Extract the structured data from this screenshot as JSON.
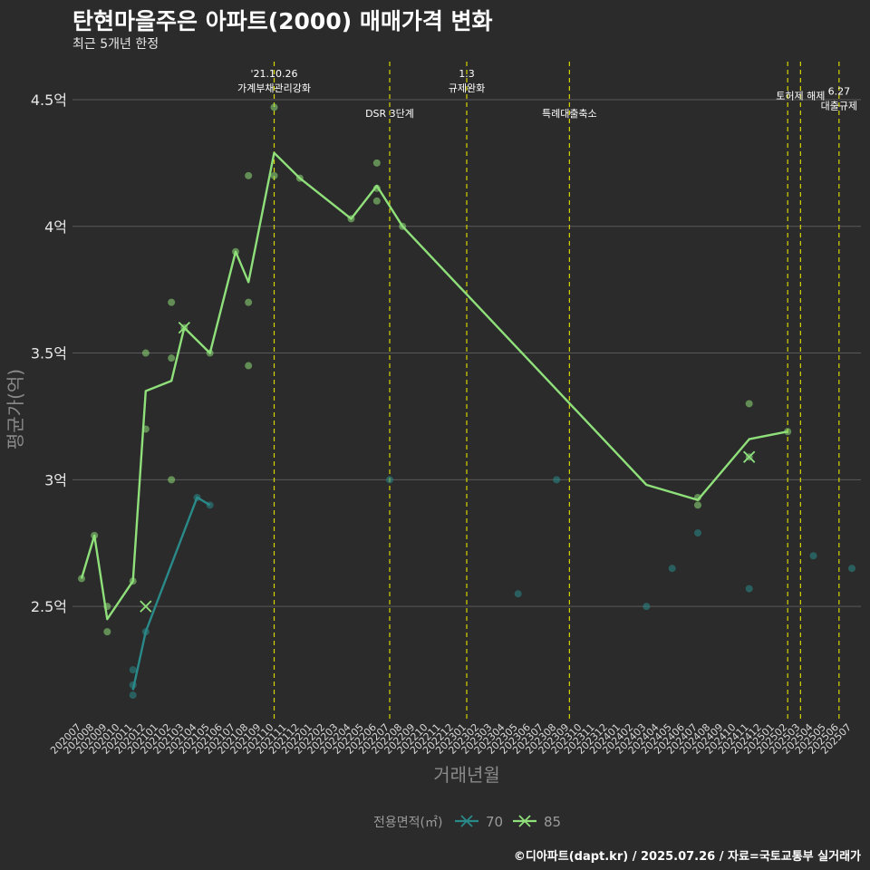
{
  "title": "탄현마을주은 아파트(2000) 매매가격 변화",
  "subtitle": "최근 5개년 한정",
  "caption": "©디아파트(dapt.kr) / 2025.07.26 / 자료=국토교통부 실거래가",
  "colors": {
    "background": "#2b2b2b",
    "grid": "#5a5a5a",
    "area70": "#2a8a8a",
    "area85": "#8fe07a",
    "event_line": "#d8d400"
  },
  "chart_data": {
    "type": "line",
    "xlabel": "거래년월",
    "ylabel": "평균가(억)",
    "ylim": [
      2.05,
      4.65
    ],
    "y_ticks": [
      {
        "value": 2.5,
        "label": "2.5억"
      },
      {
        "value": 3.0,
        "label": "3억"
      },
      {
        "value": 3.5,
        "label": "3.5억"
      },
      {
        "value": 4.0,
        "label": "4억"
      },
      {
        "value": 4.5,
        "label": "4.5억"
      }
    ],
    "x_categories": [
      "202007",
      "202008",
      "202009",
      "202010",
      "202011",
      "202012",
      "202101",
      "202102",
      "202103",
      "202104",
      "202105",
      "202106",
      "202107",
      "202108",
      "202109",
      "202110",
      "202111",
      "202112",
      "202201",
      "202202",
      "202203",
      "202204",
      "202205",
      "202206",
      "202207",
      "202208",
      "202209",
      "202210",
      "202211",
      "202212",
      "202301",
      "202302",
      "202303",
      "202304",
      "202305",
      "202306",
      "202307",
      "202308",
      "202309",
      "202310",
      "202311",
      "202312",
      "202401",
      "202402",
      "202403",
      "202404",
      "202405",
      "202406",
      "202407",
      "202408",
      "202409",
      "202410",
      "202411",
      "202412",
      "202501",
      "202502",
      "202503",
      "202504",
      "202505",
      "202506",
      "202507"
    ],
    "legend": {
      "title": "전용면적(㎡)",
      "position": "bottom",
      "items": [
        "70",
        "85"
      ]
    },
    "series": [
      {
        "name": "85",
        "color": "#8fe07a",
        "line": [
          [
            "202007",
            2.61
          ],
          [
            "202008",
            2.78
          ],
          [
            "202009",
            2.45
          ],
          [
            "202011",
            2.6
          ],
          [
            "202012",
            3.35
          ],
          [
            "202102",
            3.39
          ],
          [
            "202103",
            3.6
          ],
          [
            "202105",
            3.5
          ],
          [
            "202107",
            3.9
          ],
          [
            "202108",
            3.78
          ],
          [
            "202110",
            4.29
          ],
          [
            "202112",
            4.19
          ],
          [
            "202204",
            4.03
          ],
          [
            "202206",
            4.16
          ],
          [
            "202208",
            4.0
          ],
          [
            "202403",
            2.98
          ],
          [
            "202407",
            2.92
          ],
          [
            "202411",
            3.16
          ],
          [
            "202502",
            3.19
          ]
        ],
        "points": [
          [
            "202007",
            2.61
          ],
          [
            "202008",
            2.78
          ],
          [
            "202009",
            2.5
          ],
          [
            "202009",
            2.4
          ],
          [
            "202011",
            2.6
          ],
          [
            "202012",
            3.5
          ],
          [
            "202012",
            3.2
          ],
          [
            "202102",
            3.7
          ],
          [
            "202102",
            3.48
          ],
          [
            "202102",
            3.0
          ],
          [
            "202103",
            3.6
          ],
          [
            "202105",
            3.5
          ],
          [
            "202107",
            3.9
          ],
          [
            "202108",
            4.2
          ],
          [
            "202108",
            3.7
          ],
          [
            "202108",
            3.45
          ],
          [
            "202110",
            4.47
          ],
          [
            "202110",
            4.2
          ],
          [
            "202112",
            4.19
          ],
          [
            "202204",
            4.03
          ],
          [
            "202206",
            4.25
          ],
          [
            "202206",
            4.15
          ],
          [
            "202206",
            4.1
          ],
          [
            "202208",
            4.0
          ],
          [
            "202407",
            2.93
          ],
          [
            "202407",
            2.9
          ],
          [
            "202411",
            3.3
          ],
          [
            "202411",
            3.09
          ],
          [
            "202502",
            3.19
          ]
        ],
        "crosses": [
          [
            "202012",
            2.5
          ],
          [
            "202103",
            3.6
          ],
          [
            "202411",
            3.09
          ]
        ]
      },
      {
        "name": "70",
        "color": "#2a8a8a",
        "line": [
          [
            "202011",
            2.17
          ],
          [
            "202012",
            2.4
          ],
          [
            "202104",
            2.93
          ],
          [
            "202105",
            2.9
          ]
        ],
        "points": [
          [
            "202011",
            2.25
          ],
          [
            "202011",
            2.19
          ],
          [
            "202011",
            2.15
          ],
          [
            "202012",
            2.4
          ],
          [
            "202104",
            2.93
          ],
          [
            "202105",
            2.9
          ],
          [
            "202207",
            3.0
          ],
          [
            "202305",
            2.55
          ],
          [
            "202308",
            3.0
          ],
          [
            "202403",
            2.5
          ],
          [
            "202405",
            2.65
          ],
          [
            "202407",
            2.79
          ],
          [
            "202411",
            2.57
          ],
          [
            "202504",
            2.7
          ],
          [
            "202507",
            2.65
          ]
        ],
        "crosses": [
          [
            "202411",
            3.09
          ]
        ]
      }
    ],
    "events": [
      {
        "x": "202110",
        "dx": 0.0,
        "lines": [
          "'21.10.26",
          "가계부채관리강화"
        ],
        "label_y": 4.56
      },
      {
        "x": "202207",
        "dx": 0.0,
        "lines": [
          "DSR 3단계"
        ],
        "label_y": 4.46
      },
      {
        "x": "202301",
        "dx": 0.0,
        "lines": [
          "1.3",
          "규제완화"
        ],
        "label_y": 4.56
      },
      {
        "x": "202309",
        "dx": 0.0,
        "lines": [
          "특례대출축소"
        ],
        "label_y": 4.46
      },
      {
        "x": "202502",
        "dx": 0.0,
        "lines": [],
        "label_y": 0
      },
      {
        "x": "202503",
        "dx": 0.0,
        "lines": [
          "토허제 해제"
        ],
        "label_y": 4.53
      },
      {
        "x": "202506",
        "dx": 0.0,
        "lines": [
          "6.27",
          "대출규제"
        ],
        "label_y": 4.49
      }
    ]
  }
}
